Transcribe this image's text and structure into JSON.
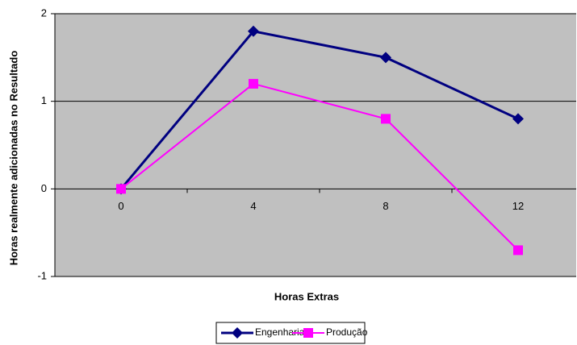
{
  "chart_data": {
    "type": "line",
    "categories": [
      "0",
      "4",
      "8",
      "12"
    ],
    "series": [
      {
        "name": "Engenharia",
        "color": "#000080",
        "values": [
          0,
          1.8,
          1.5,
          0.8
        ]
      },
      {
        "name": "Produção",
        "color": "#ff00ff",
        "values": [
          0,
          1.2,
          0.8,
          -0.7
        ]
      }
    ],
    "x_label": "Horas Extras",
    "y_label": "Horas realmente adicionadas no Resultado",
    "ylim": [
      -1,
      2
    ],
    "yticks": [
      -1,
      0,
      1,
      2
    ],
    "grid": true,
    "legend": "bottom"
  }
}
